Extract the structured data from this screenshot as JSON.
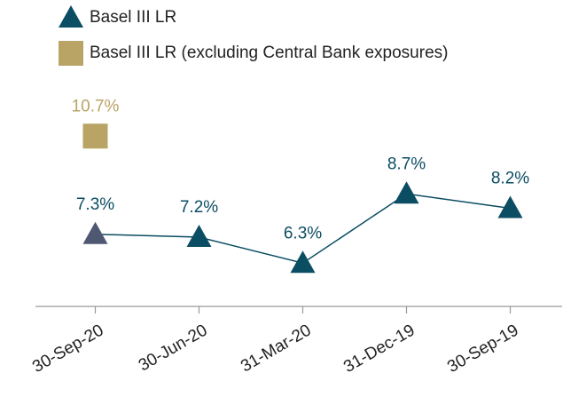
{
  "chart_data": {
    "type": "line",
    "categories": [
      "30-Sep-20",
      "30-Jun-20",
      "31-Mar-20",
      "31-Dec-19",
      "30-Sep-19"
    ],
    "series": [
      {
        "name": "Basel III LR",
        "color": "#0b4d63",
        "marker": "triangle",
        "point_colors": [
          "#4f5873",
          "#0b4d63",
          "#0b4d63",
          "#0b4d63",
          "#0b4d63"
        ],
        "values": [
          7.3,
          7.2,
          6.3,
          8.7,
          8.2
        ],
        "value_labels": [
          "7.3%",
          "7.2%",
          "6.3%",
          "8.7%",
          "8.2%"
        ]
      },
      {
        "name": "Basel III LR (excluding Central Bank exposures)",
        "color": "#b9a466",
        "marker": "square",
        "values": [
          10.7,
          null,
          null,
          null,
          null
        ],
        "value_labels": [
          "10.7%",
          null,
          null,
          null,
          null
        ]
      }
    ],
    "ylim": [
      4.8,
      14.8
    ]
  }
}
